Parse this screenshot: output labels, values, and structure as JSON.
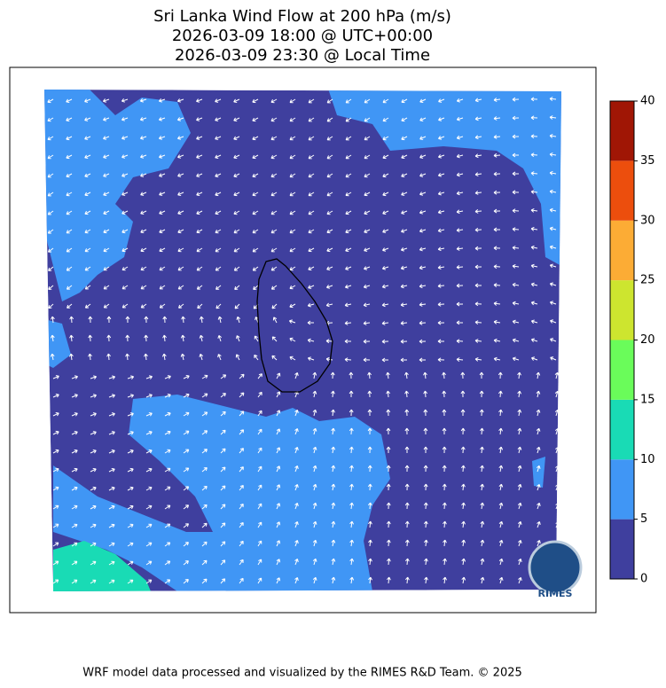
{
  "header": {
    "title_lines": [
      "Sri Lanka Wind Flow at 200 hPa (m/s)",
      "2026-03-09 18:00 @ UTC+00:00",
      "2026-03-09 23:30 @ Local Time"
    ]
  },
  "colorbar": {
    "ticks": [
      0,
      5,
      10,
      15,
      20,
      25,
      30,
      35,
      40
    ],
    "colors": [
      "#3f3f9e",
      "#4096f5",
      "#19dbb5",
      "#6afc5a",
      "#cde52f",
      "#fcac35",
      "#ec4e0d",
      "#a01605"
    ]
  },
  "logo": {
    "text": "RIMES"
  },
  "footer": {
    "text": "WRF model data processed and visualized by the RIMES R&D Team. © 2025"
  }
}
